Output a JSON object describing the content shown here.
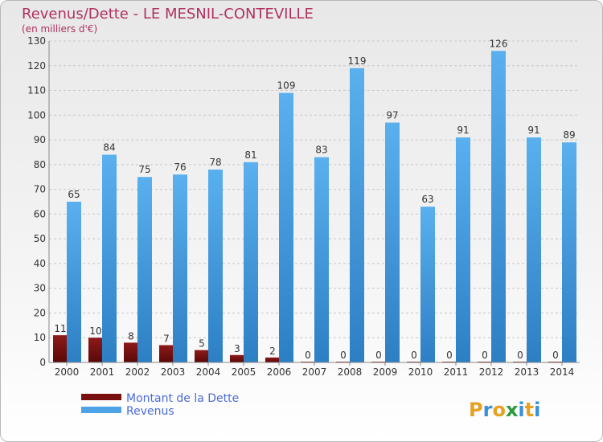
{
  "chart_data": {
    "type": "bar",
    "title": "Revenus/Dette - LE MESNIL-CONTEVILLE",
    "subtitle": "(en milliers d'€)",
    "categories": [
      "2000",
      "2001",
      "2002",
      "2003",
      "2004",
      "2005",
      "2006",
      "2007",
      "2008",
      "2009",
      "2010",
      "2011",
      "2012",
      "2013",
      "2014"
    ],
    "series": [
      {
        "name": "Montant de la Dette",
        "color": "#7a0f0f",
        "values": [
          11,
          10,
          8,
          7,
          5,
          3,
          2,
          0,
          0,
          0,
          0,
          0,
          0,
          0,
          0
        ]
      },
      {
        "name": "Revenus",
        "color": "#4da3e6",
        "values": [
          65,
          84,
          75,
          76,
          78,
          81,
          109,
          83,
          119,
          97,
          63,
          91,
          126,
          91,
          89
        ]
      }
    ],
    "ylim": [
      0,
      130
    ],
    "yticks": [
      0,
      10,
      20,
      30,
      40,
      50,
      60,
      70,
      80,
      90,
      100,
      110,
      120,
      130
    ],
    "grid": true,
    "legend": "bottom-left"
  },
  "logo": {
    "letters": [
      "P",
      "r",
      "o",
      "x",
      "i",
      "t",
      "i"
    ],
    "colors": [
      "#e8a020",
      "#3a8fd6",
      "#e8a020",
      "#2c9a3a",
      "#3a8fd6",
      "#e8a020",
      "#3a8fd6"
    ]
  }
}
